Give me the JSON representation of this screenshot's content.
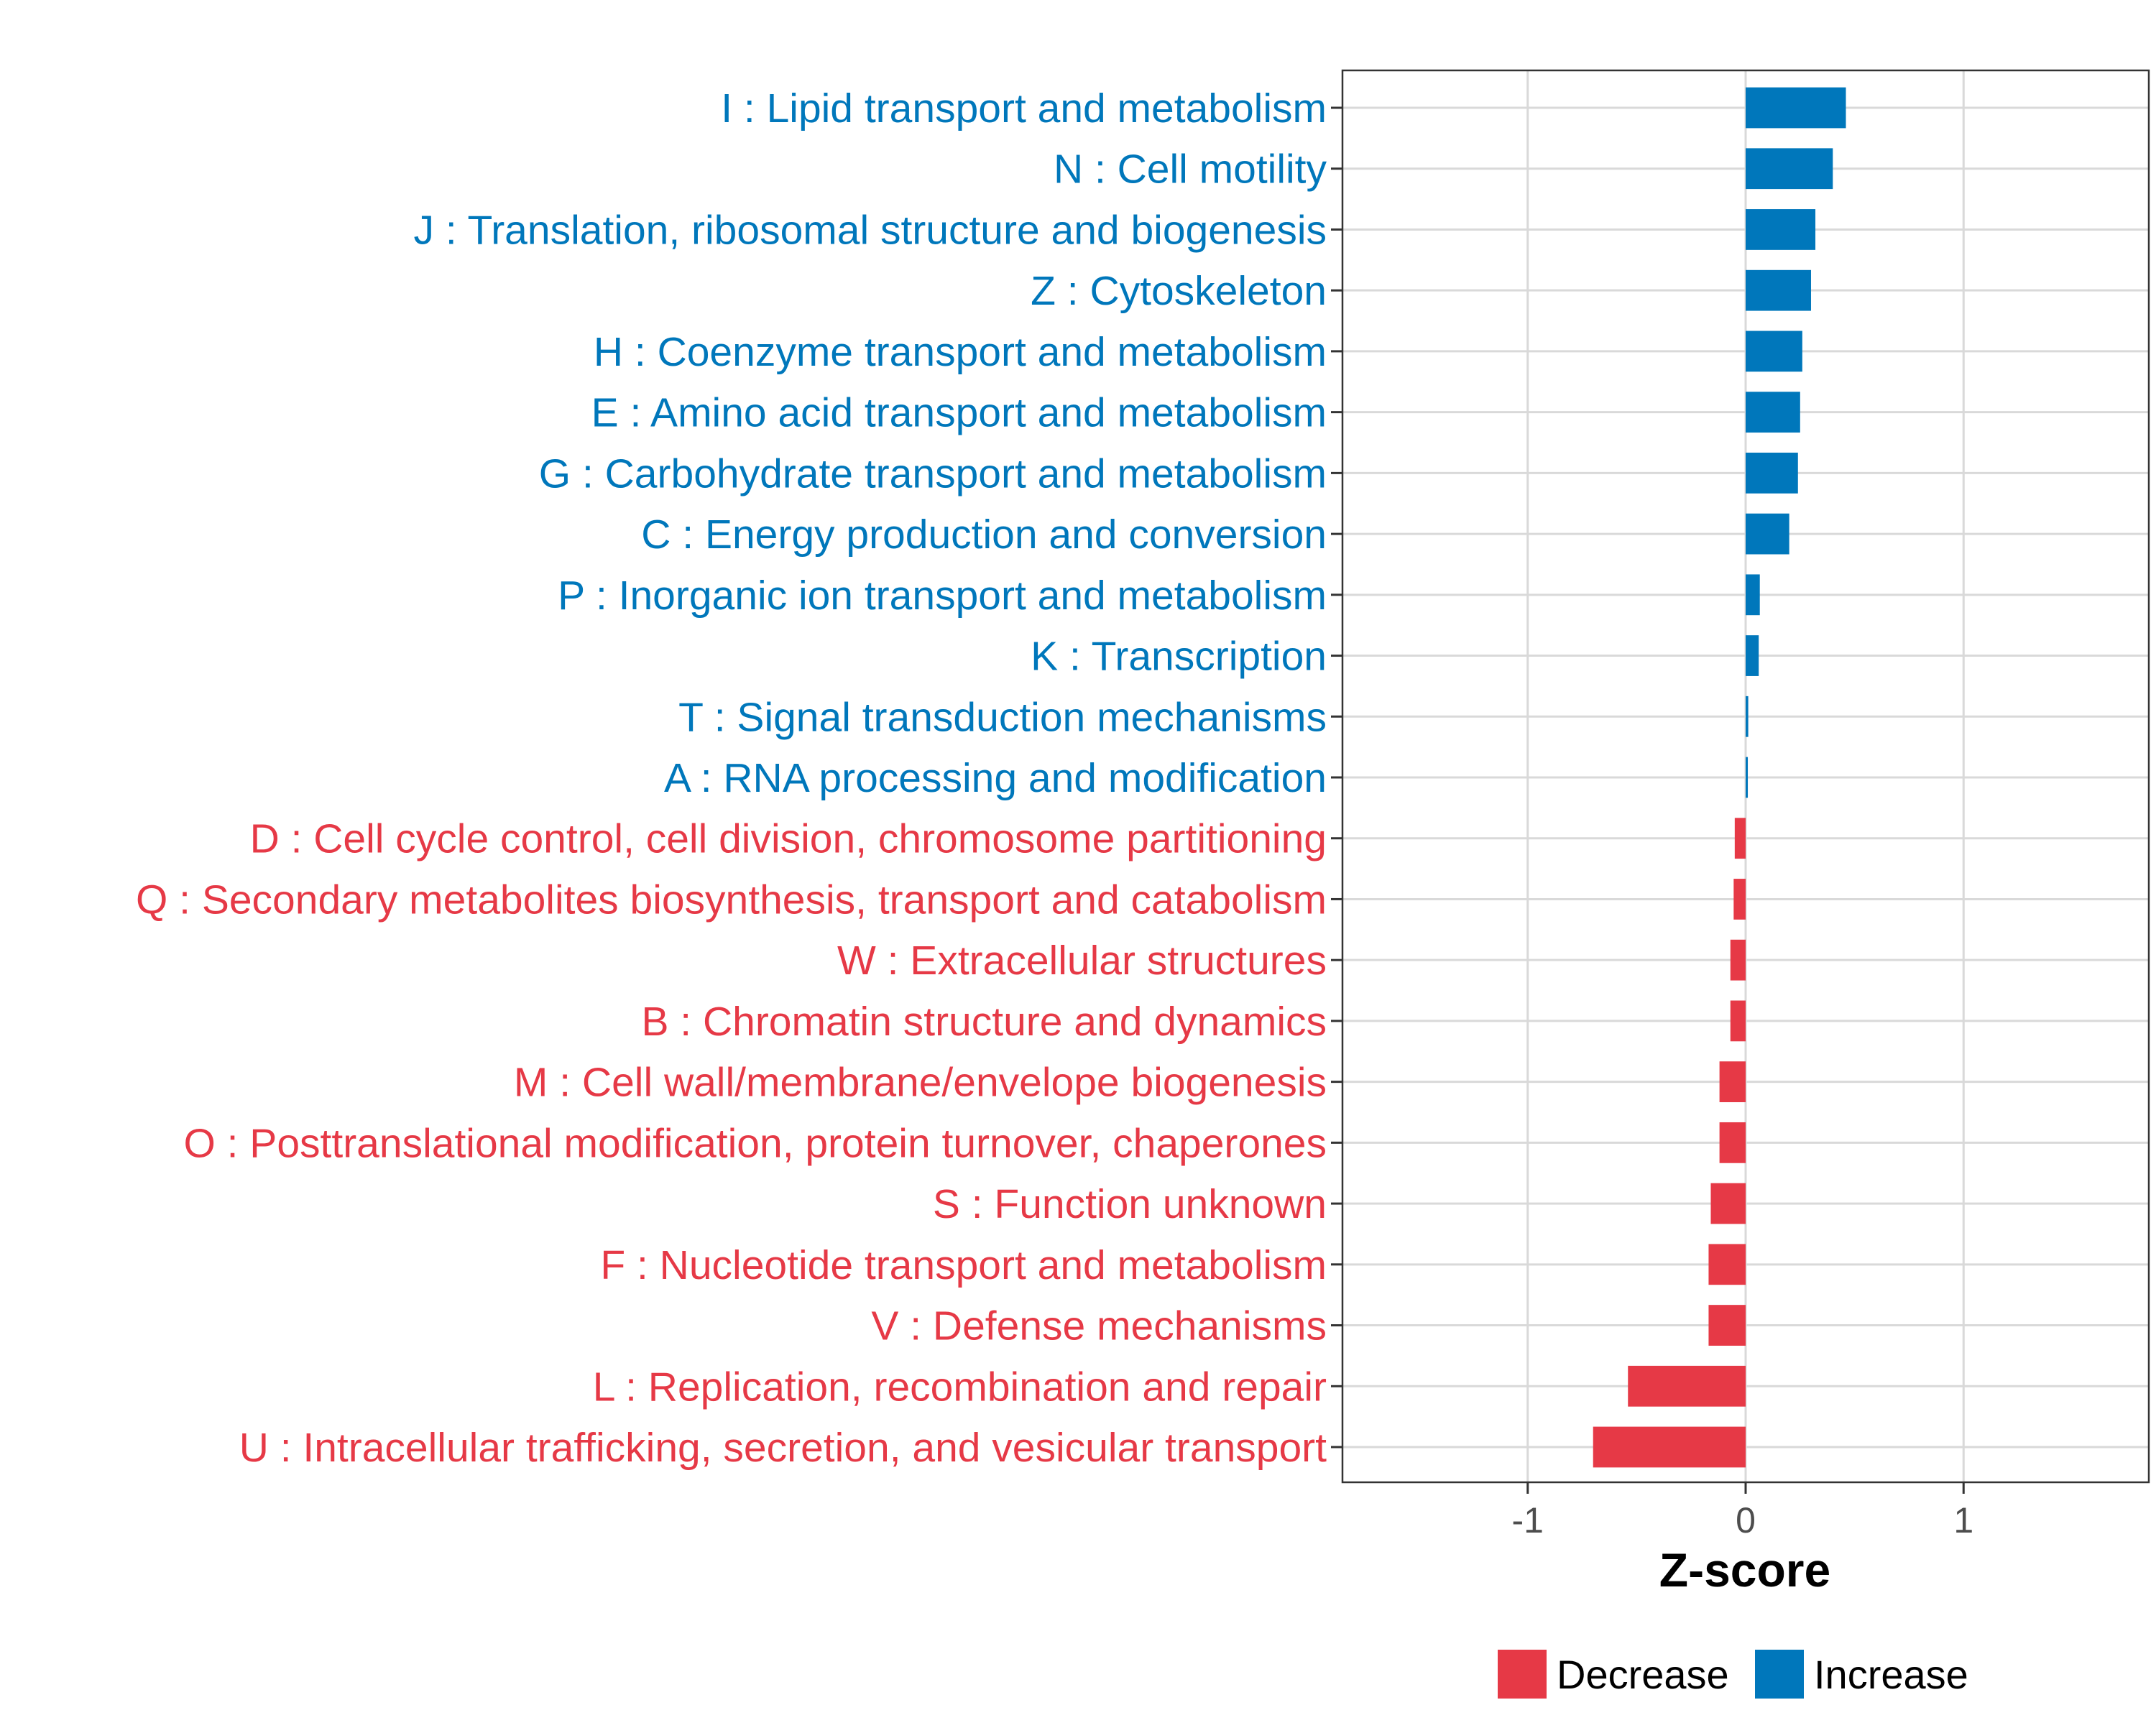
{
  "chart_data": {
    "type": "bar",
    "orientation": "horizontal",
    "xlabel": "Z-score",
    "ylabel": "",
    "xlim": [
      -1.85,
      1.85
    ],
    "xticks": [
      -1,
      0,
      1
    ],
    "xtick_labels": [
      "-1",
      "0",
      "1"
    ],
    "grid": true,
    "legend_position": "bottom",
    "colors": {
      "Decrease": "#E63946",
      "Increase": "#0077BB"
    },
    "legend": [
      {
        "name": "Decrease",
        "color": "#E63946"
      },
      {
        "name": "Increase",
        "color": "#0077BB"
      }
    ],
    "categories": [
      "I : Lipid transport and metabolism",
      "N : Cell motility",
      "J : Translation, ribosomal structure and biogenesis",
      "Z : Cytoskeleton",
      "H : Coenzyme transport and metabolism",
      "E : Amino acid transport and metabolism",
      "G : Carbohydrate transport and metabolism",
      "C : Energy production and conversion",
      "P : Inorganic ion transport and metabolism",
      "K : Transcription",
      "T : Signal transduction mechanisms",
      "A : RNA processing and modification",
      "D : Cell cycle control, cell division, chromosome partitioning",
      "Q : Secondary metabolites biosynthesis, transport and catabolism",
      "W : Extracellular structures",
      "B : Chromatin structure and dynamics",
      "M : Cell wall/membrane/envelope biogenesis",
      "O : Posttranslational modification, protein turnover, chaperones",
      "S : Function unknown",
      "F : Nucleotide transport and metabolism",
      "V : Defense mechanisms",
      "L : Replication, recombination and repair",
      "U : Intracellular trafficking, secretion, and vesicular transport"
    ],
    "values": [
      0.46,
      0.4,
      0.32,
      0.3,
      0.26,
      0.25,
      0.24,
      0.2,
      0.065,
      0.06,
      0.012,
      0.01,
      -0.05,
      -0.055,
      -0.07,
      -0.07,
      -0.12,
      -0.12,
      -0.16,
      -0.17,
      -0.17,
      -0.54,
      -0.7
    ],
    "groups": [
      "Increase",
      "Increase",
      "Increase",
      "Increase",
      "Increase",
      "Increase",
      "Increase",
      "Increase",
      "Increase",
      "Increase",
      "Increase",
      "Increase",
      "Decrease",
      "Decrease",
      "Decrease",
      "Decrease",
      "Decrease",
      "Decrease",
      "Decrease",
      "Decrease",
      "Decrease",
      "Decrease",
      "Decrease"
    ]
  }
}
